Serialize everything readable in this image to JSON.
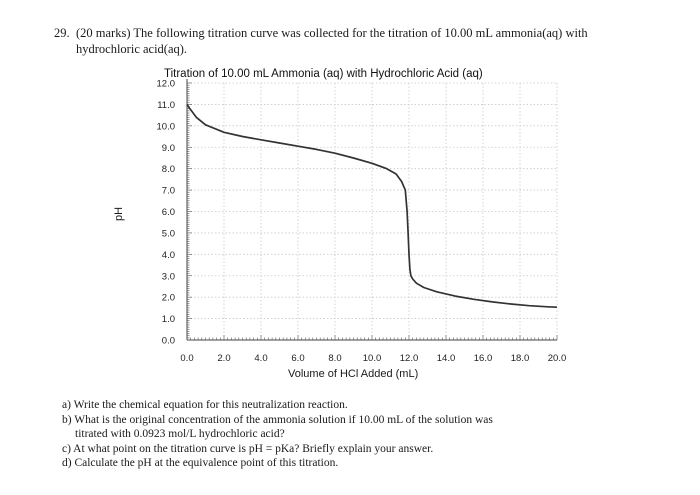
{
  "question": {
    "number": "29.",
    "intro_line1": "(20 marks) The following titration curve was collected for the titration of 10.00 mL ammonia(aq) with",
    "intro_line2": "hydrochloric acid(aq)."
  },
  "chart_data": {
    "type": "line",
    "title": "Titration of 10.00 mL Ammonia (aq) with Hydrochloric Acid (aq)",
    "xlabel": "Volume of HCl Added (mL)",
    "ylabel": "pH",
    "xlim": [
      0,
      20
    ],
    "ylim": [
      0,
      12
    ],
    "x_ticks": [
      "0.0",
      "2.0",
      "4.0",
      "6.0",
      "8.0",
      "10.0",
      "12.0",
      "14.0",
      "16.0",
      "18.0",
      "20.0"
    ],
    "y_ticks": [
      "0.0",
      "1.0",
      "2.0",
      "3.0",
      "4.0",
      "5.0",
      "6.0",
      "7.0",
      "8.0",
      "9.0",
      "10.0",
      "11.0",
      "12.0"
    ],
    "grid": true,
    "series": [
      {
        "color": "#333333",
        "x": [
          0.0,
          0.2,
          0.5,
          1.0,
          2.0,
          3.0,
          4.0,
          5.0,
          6.0,
          7.0,
          8.0,
          9.0,
          10.0,
          10.8,
          11.3,
          11.6,
          11.8,
          11.9,
          11.95,
          12.0,
          12.05,
          12.1,
          12.2,
          12.4,
          12.8,
          13.5,
          14.5,
          15.5,
          16.5,
          17.5,
          18.5,
          19.5,
          20.0
        ],
        "y": [
          11.0,
          10.75,
          10.4,
          10.05,
          9.7,
          9.5,
          9.35,
          9.2,
          9.05,
          8.9,
          8.72,
          8.5,
          8.25,
          8.0,
          7.75,
          7.4,
          7.0,
          6.0,
          5.0,
          4.0,
          3.3,
          3.0,
          2.85,
          2.65,
          2.45,
          2.25,
          2.05,
          1.9,
          1.78,
          1.68,
          1.6,
          1.55,
          1.53
        ]
      }
    ]
  },
  "questions": {
    "a": "a) Write the chemical equation for this neutralization reaction.",
    "b1": "b) What is the original concentration of the ammonia solution if 10.00 mL of the solution was",
    "b2": "titrated with 0.0923 mol/L hydrochloric acid?",
    "c": "c) At what point on the titration curve is pH = pKa? Briefly explain your answer.",
    "d": "d) Calculate the pH at the equivalence point of this titration."
  }
}
